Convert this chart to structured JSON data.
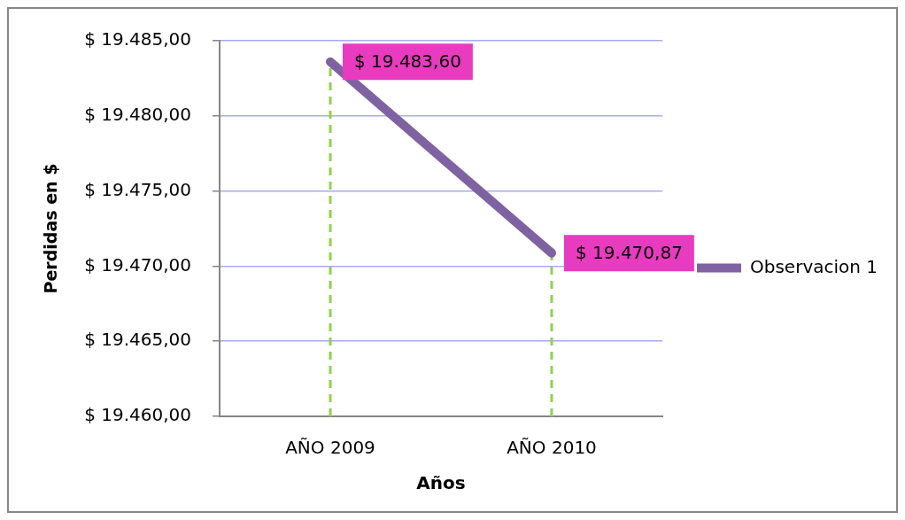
{
  "chart_data": {
    "type": "line",
    "categories": [
      "AÑO 2009",
      "AÑO 2010"
    ],
    "series": [
      {
        "name": "Observacion 1",
        "color": "#7f62a1",
        "values": [
          19483.6,
          19470.87
        ],
        "value_labels": [
          "$ 19.483,60",
          "$ 19.470,87"
        ]
      }
    ],
    "xlabel": "Años",
    "ylabel": "Perdidas en $",
    "ylim": [
      19460,
      19485
    ],
    "yticks": [
      {
        "value": 19460,
        "label": "$ 19.460,00"
      },
      {
        "value": 19465,
        "label": "$ 19.465,00"
      },
      {
        "value": 19470,
        "label": "$ 19.470,00"
      },
      {
        "value": 19475,
        "label": "$ 19.475,00"
      },
      {
        "value": 19480,
        "label": "$ 19.480,00"
      },
      {
        "value": 19485,
        "label": "$ 19.485,00"
      }
    ],
    "grid": "y",
    "legend": "right",
    "marker": "none",
    "line_style": "solid",
    "ref_lines": [
      {
        "axis": "x",
        "value": "AÑO 2009",
        "color": "#92d050",
        "line_style": "dashed"
      },
      {
        "axis": "x",
        "value": "AÑO 2010",
        "color": "#92d050",
        "line_style": "dashed"
      }
    ]
  }
}
